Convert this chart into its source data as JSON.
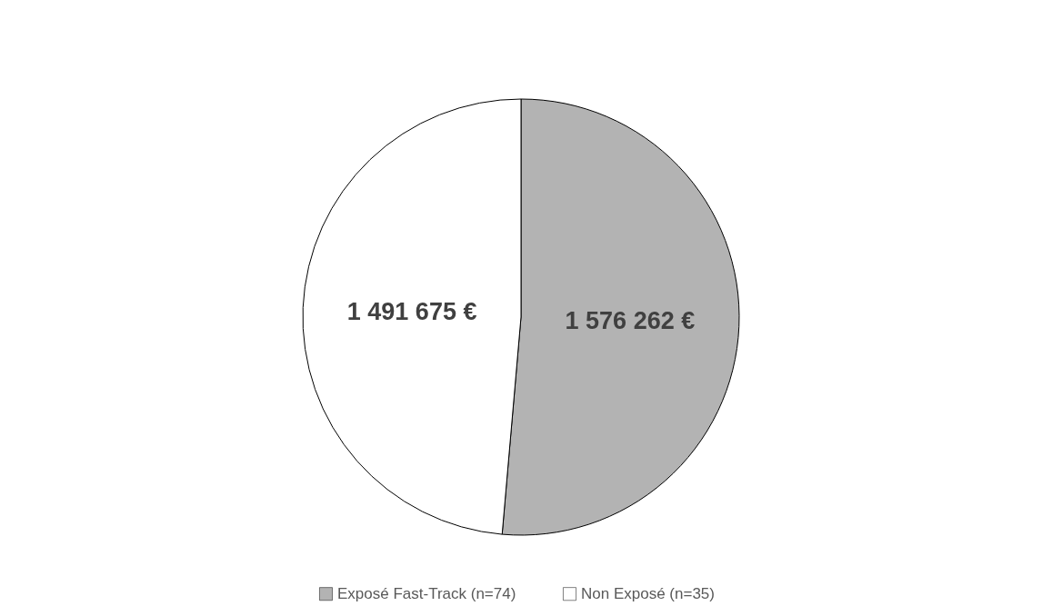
{
  "chart_data": {
    "type": "pie",
    "categories": [
      "Exposé Fast-Track (n=74)",
      "Non Exposé (n=35)"
    ],
    "values": [
      1576262,
      1491675
    ],
    "value_labels": [
      "1 576 262  €",
      "1 491 675  €"
    ],
    "colors": [
      "#b3b3b3",
      "#ffffff"
    ],
    "legend": "bottom"
  }
}
